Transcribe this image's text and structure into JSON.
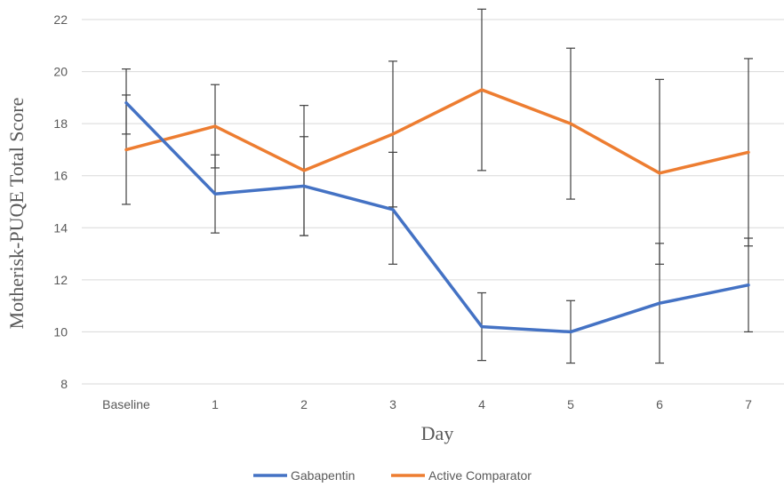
{
  "chart_data": {
    "type": "line",
    "title": "",
    "xlabel": "Day",
    "ylabel": "Motherisk-PUQE Total Score",
    "categories": [
      "Baseline",
      "1",
      "2",
      "3",
      "4",
      "5",
      "6",
      "7"
    ],
    "ylim": [
      8,
      22
    ],
    "yticks": [
      "8",
      "10",
      "12",
      "14",
      "16",
      "18",
      "20",
      "22"
    ],
    "grid": "horizontal",
    "legend_position": "bottom",
    "series": [
      {
        "name": "Gabapentin",
        "color": "#4472C4",
        "values": [
          18.8,
          15.3,
          15.6,
          14.7,
          10.2,
          10.0,
          11.1,
          11.8
        ],
        "error_low": [
          17.6,
          13.8,
          13.7,
          12.6,
          8.9,
          8.8,
          8.8,
          10.0
        ],
        "error_high": [
          20.1,
          16.8,
          17.5,
          16.9,
          11.5,
          11.2,
          13.4,
          13.6
        ]
      },
      {
        "name": "Active Comparator",
        "color": "#ED7D31",
        "values": [
          17.0,
          17.9,
          16.2,
          17.6,
          19.3,
          18.0,
          16.1,
          16.9
        ],
        "error_low": [
          14.9,
          16.3,
          13.7,
          14.8,
          16.2,
          15.1,
          12.6,
          13.3
        ],
        "error_high": [
          19.1,
          19.5,
          18.7,
          20.4,
          22.4,
          20.9,
          19.7,
          20.5
        ]
      }
    ],
    "gridline_color": "#D9D9D9",
    "errorbar_color": "#404040"
  }
}
